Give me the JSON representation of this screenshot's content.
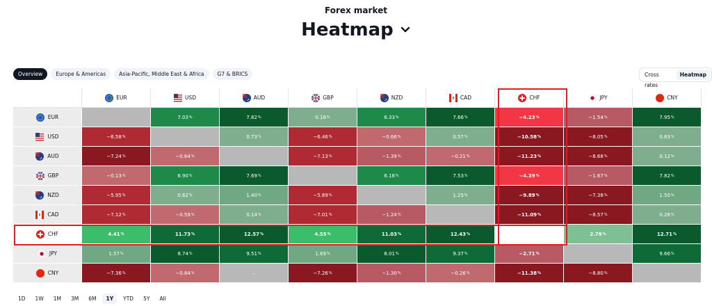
{
  "page": {
    "subtitle": "Forex market",
    "title": "Heatmap"
  },
  "tabs": [
    "Overview",
    "Europe & Americas",
    "Asia-Pacific, Middle East & Africa",
    "G7 & BRICS"
  ],
  "active_tab": 0,
  "mode": {
    "options": [
      "Cross rates",
      "Heatmap"
    ],
    "active": 1
  },
  "currencies": [
    {
      "code": "EUR",
      "flag_color": "#1f5fbf"
    },
    {
      "code": "USD",
      "flag_color": "#3c5aa6"
    },
    {
      "code": "AUD",
      "flag_color": "#1f3f8a"
    },
    {
      "code": "GBP",
      "flag_color": "#c0272d"
    },
    {
      "code": "NZD",
      "flag_color": "#1f3f8a"
    },
    {
      "code": "CAD",
      "flag_color": "#d52b1e"
    },
    {
      "code": "CHF",
      "flag_color": "#e31b23"
    },
    {
      "code": "JPY",
      "flag_color": "#e8e8e8"
    },
    {
      "code": "CNY",
      "flag_color": "#de2910"
    }
  ],
  "matrix": [
    [
      "",
      "7.03",
      "7.82",
      "0.16",
      "6.33",
      "7.66",
      "−4.23",
      "−1.54",
      "7.95"
    ],
    [
      "−6.58",
      "",
      "0.73",
      "−6.46",
      "−0.66",
      "0.57",
      "−10.58",
      "−8.05",
      "0.83"
    ],
    [
      "−7.24",
      "−0.64",
      "",
      "−7.13",
      "−1.39",
      "−0.21",
      "−11.23",
      "−8.68",
      "0.12"
    ],
    [
      "−0.13",
      "6.90",
      "7.69",
      "",
      "6.18",
      "7.53",
      "−4.39",
      "−1.67",
      "7.82"
    ],
    [
      "−5.95",
      "0.62",
      "1.40",
      "−5.89",
      "",
      "1.25",
      "−9.89",
      "−7.38",
      "1.50"
    ],
    [
      "−7.12",
      "−0.59",
      "0.14",
      "−7.01",
      "−1.24",
      "",
      "−11.09",
      "−8.57",
      "0.26"
    ],
    [
      "4.41",
      "11.73",
      "12.57",
      "4.55",
      "11.03",
      "12.43",
      "",
      "2.79",
      "12.71"
    ],
    [
      "1.57",
      "8.74",
      "9.51",
      "1.69",
      "8.01",
      "9.37",
      "−2.71",
      "",
      "9.66"
    ],
    [
      "−7.36",
      "−0.84",
      "–",
      "−7.26",
      "−1.30",
      "−0.26",
      "−11.38",
      "−8.80",
      ""
    ]
  ],
  "highlight": {
    "row": 6,
    "col": 6
  },
  "percent_suffix": "%",
  "colors": {
    "highlight_border": "#e31b23",
    "strong_green": "#0b5a2e",
    "mid_green": "#1e8a4a",
    "light_green": "#7fae8f",
    "bright_green": "#3cbd6a",
    "strong_red": "#8a1820",
    "mid_red": "#b02a33",
    "light_red": "#c06a70",
    "bright_red": "#f23645",
    "neutral": "#b8b8b8"
  },
  "periods": [
    "1D",
    "1W",
    "1M",
    "3M",
    "6M",
    "1Y",
    "YTD",
    "5Y",
    "All"
  ],
  "active_period": 5
}
